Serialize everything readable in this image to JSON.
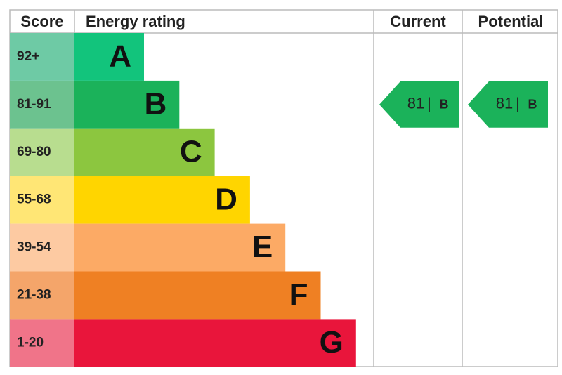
{
  "header": {
    "score": "Score",
    "rating": "Energy rating",
    "current": "Current",
    "potential": "Potential"
  },
  "rows": [
    {
      "score": "92+",
      "rating": "A",
      "color": "#12c47c",
      "tint": "#6ecaa5"
    },
    {
      "score": "81-91",
      "rating": "B",
      "color": "#1bb25a",
      "tint": "#6cc28f"
    },
    {
      "score": "69-80",
      "rating": "C",
      "color": "#8cc63f",
      "tint": "#b8dd8f"
    },
    {
      "score": "55-68",
      "rating": "D",
      "color": "#ffd500",
      "tint": "#ffe675"
    },
    {
      "score": "39-54",
      "rating": "E",
      "color": "#fcaa65",
      "tint": "#fdcaa2"
    },
    {
      "score": "21-38",
      "rating": "F",
      "color": "#ef8023",
      "tint": "#f4a56a"
    },
    {
      "score": "1-20",
      "rating": "G",
      "color": "#e9153b",
      "tint": "#f07489"
    }
  ],
  "current": {
    "score": 81,
    "rating": "B"
  },
  "potential": {
    "score": 81,
    "rating": "B"
  }
}
